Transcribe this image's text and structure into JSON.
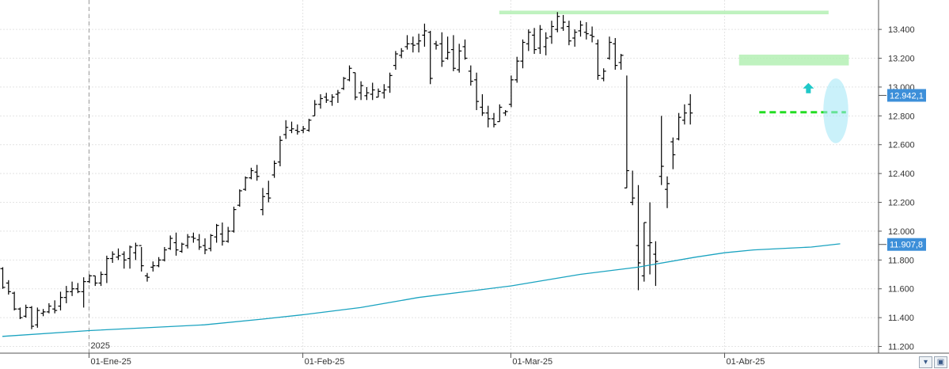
{
  "chart_data": {
    "type": "ohlc",
    "y_ticks": [
      "11.200",
      "11.400",
      "11.600",
      "11.800",
      "12.000",
      "12.200",
      "12.400",
      "12.600",
      "12.800",
      "13.000",
      "13.200",
      "13.400"
    ],
    "ylim": [
      11170,
      13560
    ],
    "x_labels": [
      {
        "label": "01-Ene-25",
        "index": 15
      },
      {
        "label": "01-Feb-25",
        "index": 52
      },
      {
        "label": "01-Mar-25",
        "index": 88
      },
      {
        "label": "01-Abr-25",
        "index": 125
      }
    ],
    "year_label": {
      "label": "2025",
      "index": 15
    },
    "price_badge": "12.942,1",
    "ma_badge": "11.907,8",
    "price_value": 12942.1,
    "ma_value": 11907.8,
    "colors": {
      "bars": "#000000",
      "ma": "#1aa3c0",
      "badge": "#3d8fd9",
      "resistance": "#b4f0b4",
      "support": "#22dd22",
      "arrow": "#1fc8c8"
    },
    "ma_line": [
      [
        0,
        11270
      ],
      [
        15,
        11310
      ],
      [
        25,
        11330
      ],
      [
        35,
        11350
      ],
      [
        45,
        11390
      ],
      [
        52,
        11420
      ],
      [
        62,
        11470
      ],
      [
        72,
        11540
      ],
      [
        82,
        11590
      ],
      [
        88,
        11620
      ],
      [
        100,
        11700
      ],
      [
        110,
        11750
      ],
      [
        120,
        11820
      ],
      [
        125,
        11850
      ],
      [
        130,
        11870
      ],
      [
        140,
        11890
      ],
      [
        145,
        11912
      ]
    ],
    "resistance_zones": [
      {
        "i0": 86,
        "i1": 143,
        "lo": 13505,
        "hi": 13530
      },
      {
        "i0": 127.5,
        "i1": 146.5,
        "lo": 13150,
        "hi": 13225
      }
    ],
    "support_line": {
      "i0": 131,
      "i1": 146,
      "y": 12825
    },
    "highlight_ellipse": {
      "i0": 142.5,
      "i1": 146,
      "lo": 12610,
      "hi": 13060
    },
    "arrow_marker": {
      "index": 139.5,
      "value": 12990
    },
    "ohlc": [
      [
        11740,
        11750,
        11600,
        11610
      ],
      [
        11640,
        11660,
        11560,
        11580
      ],
      [
        11570,
        11580,
        11450,
        11460
      ],
      [
        11460,
        11470,
        11390,
        11400
      ],
      [
        11410,
        11490,
        11400,
        11470
      ],
      [
        11470,
        11480,
        11320,
        11340
      ],
      [
        11350,
        11470,
        11330,
        11450
      ],
      [
        11430,
        11460,
        11410,
        11440
      ],
      [
        11440,
        11500,
        11430,
        11480
      ],
      [
        11460,
        11520,
        11430,
        11450
      ],
      [
        11480,
        11580,
        11450,
        11540
      ],
      [
        11540,
        11620,
        11500,
        11580
      ],
      [
        11580,
        11650,
        11550,
        11600
      ],
      [
        11600,
        11640,
        11570,
        11580
      ],
      [
        11580,
        11680,
        11470,
        11650
      ],
      [
        11650,
        11700,
        11640,
        11690
      ],
      [
        11690,
        11690,
        11620,
        11640
      ],
      [
        11640,
        11720,
        11620,
        11700
      ],
      [
        11700,
        11830,
        11640,
        11810
      ],
      [
        11810,
        11860,
        11780,
        11840
      ],
      [
        11820,
        11880,
        11800,
        11830
      ],
      [
        11840,
        11860,
        11740,
        11800
      ],
      [
        11810,
        11900,
        11740,
        11890
      ],
      [
        11850,
        11920,
        11800,
        11900
      ],
      [
        11900,
        11890,
        11720,
        11760
      ],
      [
        11690,
        11710,
        11650,
        11680
      ],
      [
        11750,
        11790,
        11720,
        11760
      ],
      [
        11760,
        11820,
        11750,
        11800
      ],
      [
        11800,
        11890,
        11790,
        11870
      ],
      [
        11880,
        11970,
        11870,
        11950
      ],
      [
        11920,
        11990,
        11830,
        11870
      ],
      [
        11860,
        11920,
        11850,
        11910
      ],
      [
        11900,
        11980,
        11880,
        11960
      ],
      [
        11960,
        11990,
        11920,
        11950
      ],
      [
        11940,
        11980,
        11870,
        11890
      ],
      [
        11900,
        11950,
        11840,
        11870
      ],
      [
        11880,
        11980,
        11860,
        11970
      ],
      [
        11960,
        12050,
        11920,
        12040
      ],
      [
        11980,
        12060,
        11900,
        11930
      ],
      [
        11930,
        12030,
        11920,
        12000
      ],
      [
        12000,
        12170,
        11990,
        12150
      ],
      [
        12180,
        12290,
        12170,
        12280
      ],
      [
        12290,
        12380,
        12280,
        12370
      ],
      [
        12370,
        12440,
        12360,
        12420
      ],
      [
        12410,
        12460,
        12350,
        12380
      ],
      [
        12150,
        12300,
        12110,
        12240
      ],
      [
        12260,
        12350,
        12200,
        12230
      ],
      [
        12390,
        12490,
        12370,
        12470
      ],
      [
        12480,
        12660,
        12450,
        12630
      ],
      [
        12670,
        12770,
        12640,
        12720
      ],
      [
        12700,
        12760,
        12680,
        12710
      ],
      [
        12700,
        12740,
        12670,
        12690
      ],
      [
        12700,
        12730,
        12680,
        12710
      ],
      [
        12700,
        12780,
        12690,
        12770
      ],
      [
        12800,
        12910,
        12800,
        12880
      ],
      [
        12880,
        12950,
        12850,
        12920
      ],
      [
        12930,
        12960,
        12890,
        12910
      ],
      [
        12900,
        12950,
        12870,
        12930
      ],
      [
        12950,
        12980,
        12890,
        12960
      ],
      [
        12990,
        13070,
        12980,
        13060
      ],
      [
        13050,
        13150,
        13040,
        13130
      ],
      [
        13100,
        13100,
        12910,
        12930
      ],
      [
        12960,
        13040,
        12910,
        13010
      ],
      [
        12940,
        13000,
        12910,
        12960
      ],
      [
        12950,
        13030,
        12910,
        12980
      ],
      [
        12930,
        12990,
        12930,
        12970
      ],
      [
        12960,
        13020,
        12920,
        12980
      ],
      [
        13000,
        13100,
        12960,
        13080
      ],
      [
        13150,
        13250,
        13120,
        13230
      ],
      [
        13220,
        13270,
        13200,
        13250
      ],
      [
        13280,
        13360,
        13260,
        13300
      ],
      [
        13300,
        13350,
        13240,
        13290
      ],
      [
        13300,
        13370,
        13240,
        13320
      ],
      [
        13360,
        13440,
        13280,
        13390
      ],
      [
        13380,
        13390,
        13020,
        13060
      ],
      [
        13300,
        13320,
        13260,
        13290
      ],
      [
        13300,
        13380,
        13140,
        13180
      ],
      [
        13200,
        13350,
        13190,
        13240
      ],
      [
        13260,
        13360,
        13110,
        13130
      ],
      [
        13120,
        13300,
        13100,
        13250
      ],
      [
        13280,
        13330,
        13190,
        13200
      ],
      [
        13110,
        13150,
        13010,
        13040
      ],
      [
        13050,
        13100,
        12840,
        12900
      ],
      [
        12860,
        12950,
        12800,
        12820
      ],
      [
        12820,
        12870,
        12720,
        12780
      ],
      [
        12780,
        12820,
        12720,
        12740
      ],
      [
        12760,
        12880,
        12760,
        12860
      ],
      [
        12820,
        12840,
        12800,
        12830
      ],
      [
        12880,
        13080,
        12860,
        13050
      ],
      [
        13050,
        13210,
        13030,
        13180
      ],
      [
        13180,
        13330,
        13130,
        13310
      ],
      [
        13300,
        13400,
        13250,
        13380
      ],
      [
        13360,
        13410,
        13230,
        13260
      ],
      [
        13270,
        13430,
        13230,
        13400
      ],
      [
        13280,
        13380,
        13220,
        13340
      ],
      [
        13350,
        13460,
        13300,
        13420
      ],
      [
        13400,
        13520,
        13380,
        13490
      ],
      [
        13410,
        13500,
        13390,
        13450
      ],
      [
        13420,
        13460,
        13290,
        13320
      ],
      [
        13340,
        13400,
        13280,
        13380
      ],
      [
        13390,
        13460,
        13350,
        13430
      ],
      [
        13380,
        13450,
        13330,
        13370
      ],
      [
        13360,
        13420,
        13310,
        13350
      ],
      [
        13300,
        13330,
        13050,
        13080
      ],
      [
        13060,
        13130,
        13040,
        13110
      ],
      [
        13200,
        13350,
        13190,
        13310
      ],
      [
        13300,
        13340,
        13120,
        13150
      ],
      [
        13170,
        13230,
        13120,
        13220
      ],
      [
        12300,
        13080,
        12300,
        12420
      ],
      [
        12200,
        12420,
        12180,
        12230
      ],
      [
        11900,
        12320,
        11590,
        11780
      ],
      [
        11690,
        12060,
        11650,
        12060
      ],
      [
        11900,
        12200,
        11700,
        11920
      ],
      [
        11840,
        11930,
        11620,
        11790
      ],
      [
        12380,
        12800,
        12320,
        12450
      ],
      [
        12290,
        12380,
        12160,
        12330
      ],
      [
        12620,
        12650,
        12430,
        12530
      ],
      [
        12640,
        12820,
        12630,
        12790
      ],
      [
        12770,
        12880,
        12740,
        12820
      ],
      [
        12880,
        12950,
        12740,
        12820
      ]
    ]
  }
}
